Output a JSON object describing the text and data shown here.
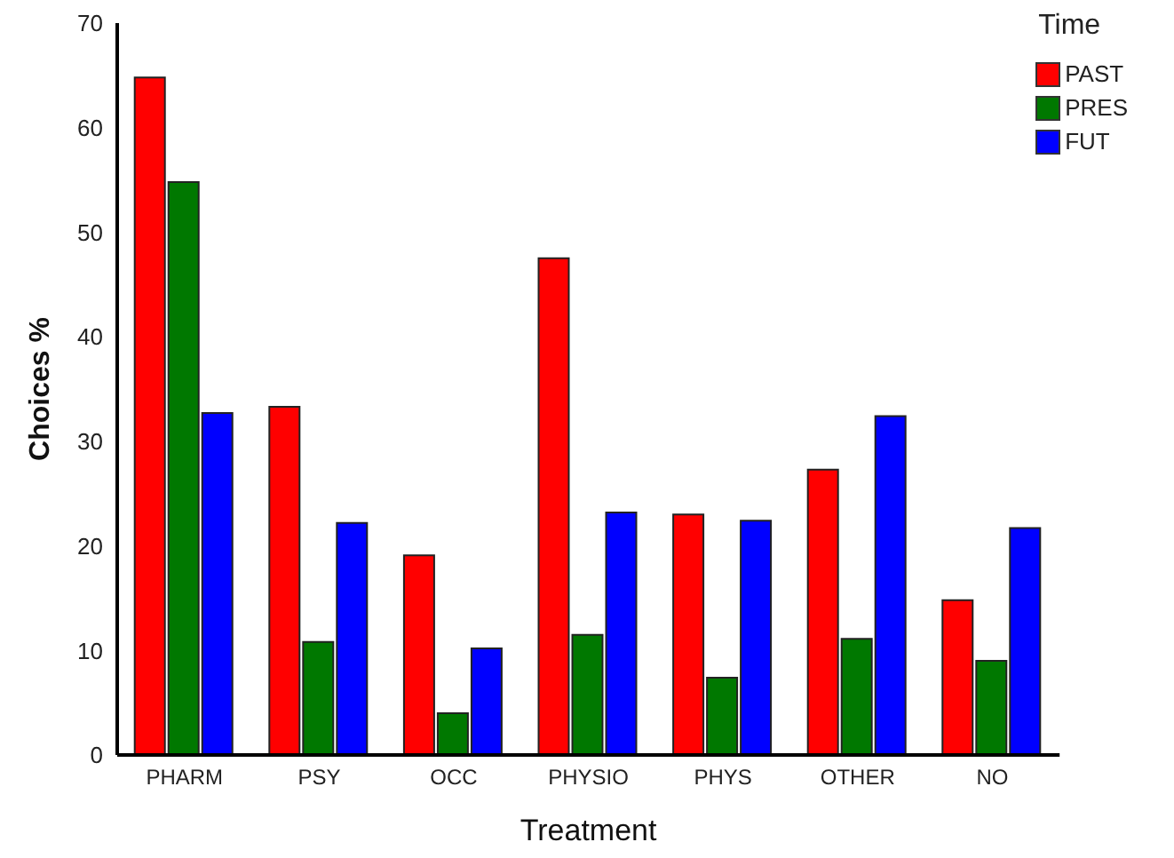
{
  "chart_data": {
    "type": "bar",
    "xlabel": "Treatment",
    "ylabel": "Choices %",
    "legend_title": "Time",
    "categories": [
      "PHARM",
      "PSY",
      "OCC",
      "PHYSIO",
      "PHYS",
      "OTHER",
      "NO"
    ],
    "series": [
      {
        "name": "PAST",
        "color": "#ff0000",
        "values": [
          64.8,
          33.3,
          19.1,
          47.5,
          23.0,
          27.3,
          14.8
        ]
      },
      {
        "name": "PRES",
        "color": "#007800",
        "values": [
          54.8,
          10.8,
          4.0,
          11.5,
          7.4,
          11.1,
          9.0
        ]
      },
      {
        "name": "FUT",
        "color": "#0000ff",
        "values": [
          32.7,
          22.2,
          10.2,
          23.2,
          22.4,
          32.4,
          21.7
        ]
      }
    ],
    "ylim": [
      0,
      70
    ],
    "yticks": [
      0,
      10,
      20,
      30,
      40,
      50,
      60,
      70
    ],
    "grid": false,
    "legend": "top right"
  }
}
